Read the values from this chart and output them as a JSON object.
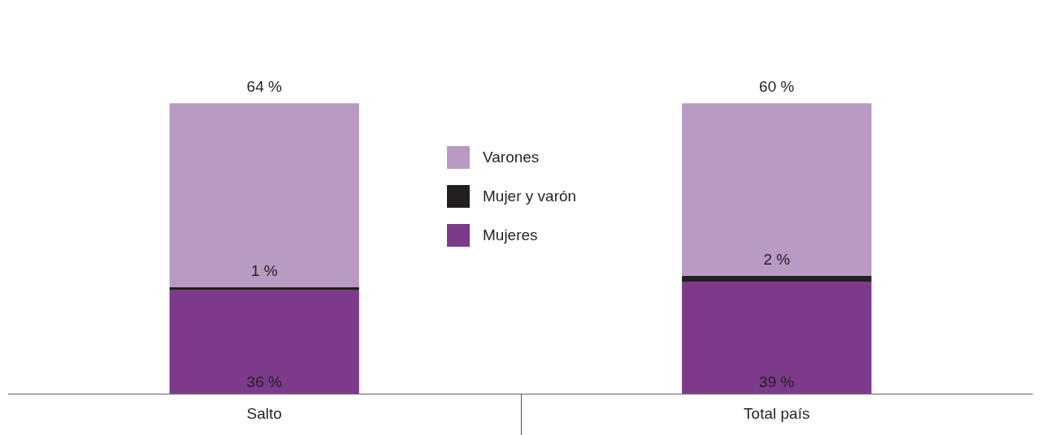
{
  "chart_data": {
    "type": "bar",
    "stacked": true,
    "categories": [
      "Salto",
      "Total país"
    ],
    "legend": "center",
    "grid": false,
    "series": [
      {
        "name": "Mujeres",
        "color": "#7e3a8a",
        "values": [
          36,
          39
        ],
        "value_labels": [
          "36 %",
          "39 %"
        ]
      },
      {
        "name": "Mujer y varón",
        "color": "#231f20",
        "values": [
          1,
          2
        ],
        "value_labels": [
          "1 %",
          "2 %"
        ]
      },
      {
        "name": "Varones",
        "color": "#b89ac2",
        "values": [
          64,
          60
        ],
        "value_labels": [
          "64 %",
          "60 %"
        ]
      }
    ]
  }
}
